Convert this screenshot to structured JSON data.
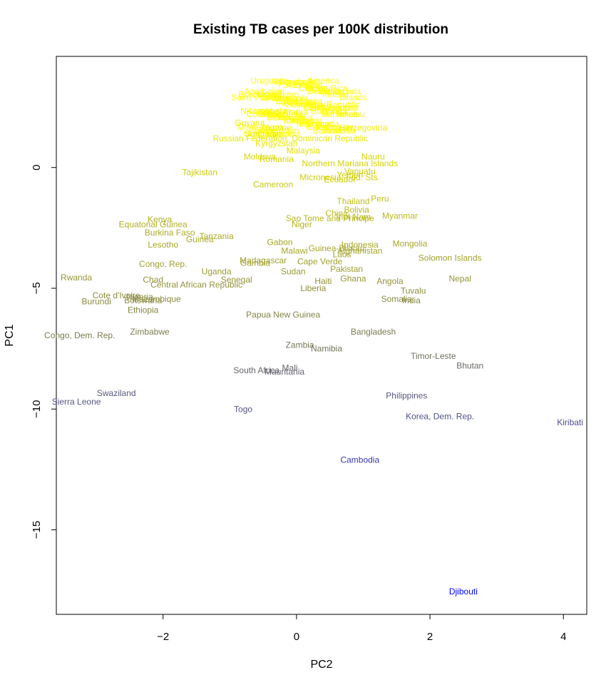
{
  "chart_data": {
    "type": "scatter",
    "title": "Existing TB cases per 100K distribution",
    "xlabel": "PC2",
    "ylabel": "PC1",
    "xlim": [
      -3.6,
      4.35
    ],
    "ylim": [
      -18.5,
      4.6
    ],
    "xticks": [
      -2,
      0,
      2,
      4
    ],
    "yticks": [
      0,
      -5,
      -10,
      -15
    ],
    "grid": false,
    "points": [
      {
        "label": "Uruguay",
        "x": -0.45,
        "y": 3.6,
        "color": "#ffff00"
      },
      {
        "label": "America",
        "x": 0.4,
        "y": 3.6,
        "color": "#ffff00"
      },
      {
        "label": "Saint Vincent",
        "x": -0.6,
        "y": 2.9,
        "color": "#ffff00"
      },
      {
        "label": "Islands",
        "x": 0.85,
        "y": 2.9,
        "color": "#ffff00"
      },
      {
        "label": "Republic",
        "x": 0.7,
        "y": 2.6,
        "color": "#ffff00"
      },
      {
        "label": "Saudi Arabia",
        "x": -0.2,
        "y": 2.3,
        "color": "#f5f500"
      },
      {
        "label": "Tokelau",
        "x": 0.8,
        "y": 2.2,
        "color": "#f5f500"
      },
      {
        "label": "Guyana",
        "x": -0.7,
        "y": 1.85,
        "color": "#eeee00"
      },
      {
        "label": "Ukraine",
        "x": -0.3,
        "y": 1.65,
        "color": "#eeee00"
      },
      {
        "label": "Herzegovina",
        "x": 1.0,
        "y": 1.65,
        "color": "#eeee00"
      },
      {
        "label": "Suriname",
        "x": -0.5,
        "y": 1.4,
        "color": "#eeee00"
      },
      {
        "label": "Russian Federation",
        "x": -0.7,
        "y": 1.2,
        "color": "#e8e800"
      },
      {
        "label": "Kyrgyzstan",
        "x": -0.3,
        "y": 1.0,
        "color": "#e8e800"
      },
      {
        "label": "Dominican Republic",
        "x": 0.5,
        "y": 1.2,
        "color": "#e8e800"
      },
      {
        "label": "Malaysia",
        "x": 0.1,
        "y": 0.7,
        "color": "#e0e000"
      },
      {
        "label": "Moldova",
        "x": -0.55,
        "y": 0.45,
        "color": "#d8d800"
      },
      {
        "label": "Romania",
        "x": -0.3,
        "y": 0.35,
        "color": "#d8d800"
      },
      {
        "label": "Nauru",
        "x": 1.15,
        "y": 0.45,
        "color": "#d8d800"
      },
      {
        "label": "Northern Mariana Islands",
        "x": 0.8,
        "y": 0.17,
        "color": "#d4d400"
      },
      {
        "label": "Vanuatu",
        "x": 0.95,
        "y": -0.15,
        "color": "#d0d000"
      },
      {
        "label": "Yemen",
        "x": 0.8,
        "y": -0.3,
        "color": "#d0d000"
      },
      {
        "label": "Micronesia, Fed. Sts.",
        "x": 0.65,
        "y": -0.4,
        "color": "#d0d000"
      },
      {
        "label": "Ecuador",
        "x": 0.65,
        "y": -0.5,
        "color": "#d0d000"
      },
      {
        "label": "Tajikistan",
        "x": -1.45,
        "y": -0.2,
        "color": "#cccc10"
      },
      {
        "label": "Cameroon",
        "x": -0.35,
        "y": -0.7,
        "color": "#c8c810"
      },
      {
        "label": "Thailand",
        "x": 0.85,
        "y": -1.4,
        "color": "#bfbf18"
      },
      {
        "label": "Peru",
        "x": 1.25,
        "y": -1.3,
        "color": "#bfbf18"
      },
      {
        "label": "Bolivia",
        "x": 0.9,
        "y": -1.75,
        "color": "#baba1c"
      },
      {
        "label": "China",
        "x": 0.6,
        "y": -1.9,
        "color": "#baba1c"
      },
      {
        "label": "Viet Nam",
        "x": 0.85,
        "y": -2.05,
        "color": "#b8b81e"
      },
      {
        "label": "Myanmar",
        "x": 1.55,
        "y": -2.0,
        "color": "#b8b81e"
      },
      {
        "label": "Sao Tome and Principe",
        "x": 0.5,
        "y": -2.1,
        "color": "#b8b81e"
      },
      {
        "label": "Niger",
        "x": 0.08,
        "y": -2.35,
        "color": "#b5b520"
      },
      {
        "label": "Kenya",
        "x": -2.05,
        "y": -2.15,
        "color": "#b0b022"
      },
      {
        "label": "Equatorial Guinea",
        "x": -2.15,
        "y": -2.35,
        "color": "#b0b022"
      },
      {
        "label": "Burkina Faso",
        "x": -1.9,
        "y": -2.7,
        "color": "#acac26"
      },
      {
        "label": "Tanzania",
        "x": -1.2,
        "y": -2.85,
        "color": "#acac26"
      },
      {
        "label": "Guinea",
        "x": -1.45,
        "y": -2.97,
        "color": "#acac26"
      },
      {
        "label": "Gabon",
        "x": -0.25,
        "y": -3.1,
        "color": "#a8a828"
      },
      {
        "label": "Lesotho",
        "x": -2.0,
        "y": -3.2,
        "color": "#a8a828"
      },
      {
        "label": "Mongolia",
        "x": 1.7,
        "y": -3.15,
        "color": "#a8a828"
      },
      {
        "label": "Indonesia",
        "x": 0.95,
        "y": -3.2,
        "color": "#a8a828"
      },
      {
        "label": "Guinea-Bissau",
        "x": 0.6,
        "y": -3.35,
        "color": "#a5a52a"
      },
      {
        "label": "Afghanistan",
        "x": 0.95,
        "y": -3.45,
        "color": "#a5a52a"
      },
      {
        "label": "Malawi",
        "x": -0.03,
        "y": -3.45,
        "color": "#a5a52a"
      },
      {
        "label": "Laos",
        "x": 0.68,
        "y": -3.6,
        "color": "#a2a22c"
      },
      {
        "label": "Solomon Islands",
        "x": 2.3,
        "y": -3.75,
        "color": "#a2a22c"
      },
      {
        "label": "Madagascar",
        "x": -0.5,
        "y": -3.85,
        "color": "#a0a02e"
      },
      {
        "label": "Gambia",
        "x": -0.62,
        "y": -3.95,
        "color": "#a0a02e"
      },
      {
        "label": "Cape Verde",
        "x": 0.35,
        "y": -3.9,
        "color": "#a0a02e"
      },
      {
        "label": "Congo, Rep.",
        "x": -2.0,
        "y": -4.0,
        "color": "#9e9e30"
      },
      {
        "label": "Pakistan",
        "x": 0.75,
        "y": -4.2,
        "color": "#9e9e30"
      },
      {
        "label": "Uganda",
        "x": -1.2,
        "y": -4.3,
        "color": "#9a9a34"
      },
      {
        "label": "Sudan",
        "x": -0.05,
        "y": -4.3,
        "color": "#9a9a34"
      },
      {
        "label": "Rwanda",
        "x": -3.3,
        "y": -4.55,
        "color": "#969636"
      },
      {
        "label": "Ghana",
        "x": 0.85,
        "y": -4.6,
        "color": "#969636"
      },
      {
        "label": "Chad",
        "x": -2.15,
        "y": -4.65,
        "color": "#949438"
      },
      {
        "label": "Senegal",
        "x": -0.9,
        "y": -4.65,
        "color": "#949438"
      },
      {
        "label": "Haiti",
        "x": 0.4,
        "y": -4.7,
        "color": "#949438"
      },
      {
        "label": "Angola",
        "x": 1.4,
        "y": -4.7,
        "color": "#949438"
      },
      {
        "label": "Nepal",
        "x": 2.45,
        "y": -4.6,
        "color": "#949438"
      },
      {
        "label": "Central African Republic",
        "x": -1.5,
        "y": -4.85,
        "color": "#92923a"
      },
      {
        "label": "Liberia",
        "x": 0.25,
        "y": -5.0,
        "color": "#90903c"
      },
      {
        "label": "Tuvalu",
        "x": 1.75,
        "y": -5.1,
        "color": "#8e8e3e"
      },
      {
        "label": "Cote d'Ivoire",
        "x": -2.7,
        "y": -5.3,
        "color": "#8c8c40"
      },
      {
        "label": "Nigeria",
        "x": -2.35,
        "y": -5.35,
        "color": "#8c8c40"
      },
      {
        "label": "Mozambique",
        "x": -2.1,
        "y": -5.45,
        "color": "#8a8a42"
      },
      {
        "label": "Botswana",
        "x": -2.3,
        "y": -5.5,
        "color": "#8a8a42"
      },
      {
        "label": "Burundi",
        "x": -3.0,
        "y": -5.55,
        "color": "#8a8a42"
      },
      {
        "label": "Somalia",
        "x": 1.5,
        "y": -5.45,
        "color": "#8a8a42"
      },
      {
        "label": "India",
        "x": 1.72,
        "y": -5.5,
        "color": "#8a8a42"
      },
      {
        "label": "Ethiopia",
        "x": -2.3,
        "y": -5.9,
        "color": "#868646"
      },
      {
        "label": "Papua New Guinea",
        "x": -0.2,
        "y": -6.1,
        "color": "#848448"
      },
      {
        "label": "Zimbabwe",
        "x": -2.2,
        "y": -6.8,
        "color": "#7e7e50"
      },
      {
        "label": "Congo, Dem. Rep.",
        "x": -3.25,
        "y": -6.95,
        "color": "#7c7c52"
      },
      {
        "label": "Bangladesh",
        "x": 1.15,
        "y": -6.8,
        "color": "#7c7c52"
      },
      {
        "label": "Zambia",
        "x": 0.05,
        "y": -7.35,
        "color": "#76765a"
      },
      {
        "label": "Namibia",
        "x": 0.45,
        "y": -7.5,
        "color": "#74745c"
      },
      {
        "label": "Timor-Leste",
        "x": 2.05,
        "y": -7.8,
        "color": "#707060"
      },
      {
        "label": "Bhutan",
        "x": 2.6,
        "y": -8.2,
        "color": "#6a6a66"
      },
      {
        "label": "South Africa",
        "x": -0.6,
        "y": -8.4,
        "color": "#66666c"
      },
      {
        "label": "Mali",
        "x": -0.1,
        "y": -8.3,
        "color": "#66666c"
      },
      {
        "label": "Mauritania",
        "x": -0.18,
        "y": -8.45,
        "color": "#64646e"
      },
      {
        "label": "Swaziland",
        "x": -2.7,
        "y": -9.35,
        "color": "#5a5a7e"
      },
      {
        "label": "Philippines",
        "x": 1.65,
        "y": -9.45,
        "color": "#585880"
      },
      {
        "label": "Sierra Leone",
        "x": -3.3,
        "y": -9.7,
        "color": "#565684"
      },
      {
        "label": "Togo",
        "x": -0.8,
        "y": -10.0,
        "color": "#545486"
      },
      {
        "label": "Korea, Dem. Rep.",
        "x": 2.15,
        "y": -10.3,
        "color": "#50508c"
      },
      {
        "label": "Kiribati",
        "x": 4.1,
        "y": -10.55,
        "color": "#4c4c92"
      },
      {
        "label": "Cambodia",
        "x": 0.95,
        "y": -12.1,
        "color": "#3838b4"
      },
      {
        "label": "Djibouti",
        "x": 2.5,
        "y": -17.55,
        "color": "#0000ff"
      }
    ],
    "cluster": {
      "labels": [
        "Uruguay",
        "Bahamas",
        "Ireland",
        "Barbados",
        "Bulgaria",
        "Belarus",
        "Brazil",
        "Chile",
        "Cuba",
        "Fiji",
        "Georgia",
        "Serbia",
        "Iraq",
        "Egypt",
        "Syria",
        "Benin",
        "Oman",
        "Qatar",
        "Colombia",
        "Bosnia and",
        "Armenia",
        "Tonga",
        "Samoa",
        "Palau",
        "Iran",
        "Turkey",
        "Morocco",
        "Albania",
        "Belize",
        "Jordan",
        "Lebanon",
        "Algeria",
        "Honduras",
        "Panama",
        "Kuwait",
        "Bahrain",
        "Latvia",
        "Libya",
        "Nicaragua",
        "Guatemala",
        "Paraguay",
        "El Salvador",
        "Costa Rica",
        "Grenada",
        "Mexico",
        "Niue",
        "Tunisia",
        "Sri Lanka",
        "Seychelles",
        "Mauritius",
        "Lithuania",
        "Estonia",
        "Venezuela",
        "Uzbekistan",
        "Turkmenistan",
        "Kazakhstan",
        "Azerbaijan",
        "Montenegro",
        "Argentina"
      ],
      "x_range": [
        -0.55,
        0.65
      ],
      "y_range": [
        1.4,
        3.55
      ]
    }
  }
}
